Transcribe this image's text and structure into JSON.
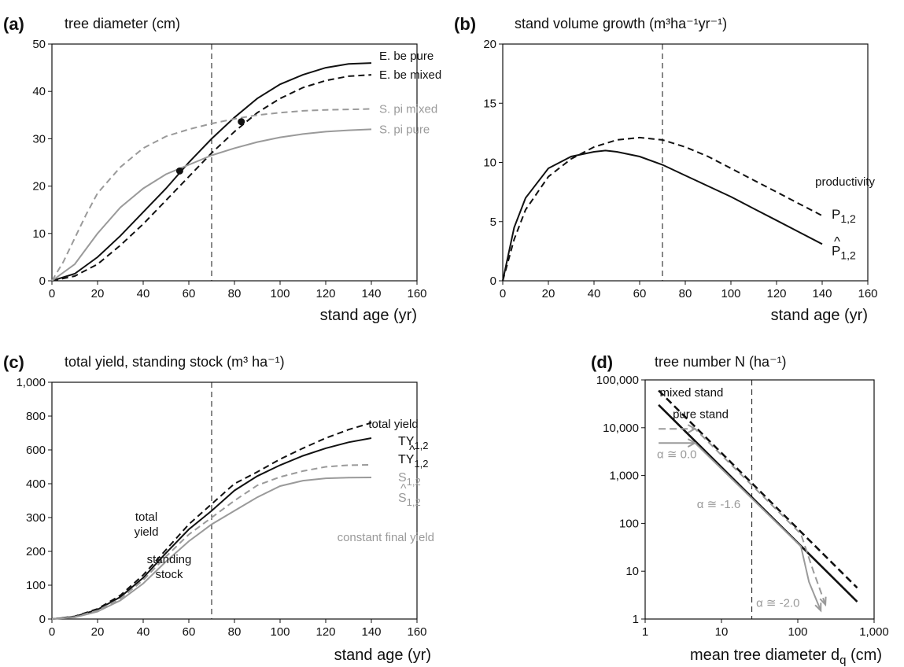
{
  "colors": {
    "black": "#111111",
    "gray": "#9a9a9a"
  },
  "chart_data": [
    {
      "panel_label": "(a)",
      "type": "line",
      "title": "tree diameter (cm)",
      "xlabel": "stand age (yr)",
      "xlim": [
        0,
        160
      ],
      "ylim": [
        0,
        50
      ],
      "x_ticks": [
        0,
        20,
        40,
        60,
        80,
        100,
        120,
        140,
        160
      ],
      "y_ticks": [
        0,
        10,
        20,
        30,
        40,
        50
      ],
      "reference_x": 70,
      "series": [
        {
          "name": "E. be pure",
          "color": "black",
          "dash": false,
          "x": [
            0,
            10,
            20,
            30,
            40,
            50,
            60,
            70,
            80,
            90,
            100,
            110,
            120,
            130,
            140
          ],
          "y": [
            0,
            1.5,
            5,
            9.5,
            14.5,
            19.5,
            25,
            30,
            34.5,
            38.5,
            41.5,
            43.5,
            45,
            45.8,
            46
          ]
        },
        {
          "name": "E. be mixed",
          "color": "black",
          "dash": true,
          "x": [
            0,
            10,
            20,
            30,
            40,
            50,
            60,
            70,
            80,
            90,
            100,
            110,
            120,
            130,
            140
          ],
          "y": [
            0,
            1,
            3.5,
            7.5,
            12,
            17,
            22,
            27,
            31.5,
            35.5,
            38.5,
            40.8,
            42.3,
            43.2,
            43.5
          ]
        },
        {
          "name": "S. pi mixed",
          "color": "gray",
          "dash": true,
          "x": [
            0,
            5,
            10,
            15,
            20,
            30,
            40,
            50,
            60,
            70,
            80,
            90,
            100,
            110,
            120,
            130,
            140
          ],
          "y": [
            0,
            4,
            9,
            14,
            18.5,
            24,
            28,
            30.5,
            32,
            33.2,
            34.2,
            35,
            35.5,
            35.9,
            36.1,
            36.2,
            36.3
          ]
        },
        {
          "name": "S. pi pure",
          "color": "gray",
          "dash": false,
          "x": [
            0,
            10,
            20,
            30,
            40,
            50,
            60,
            70,
            80,
            90,
            100,
            110,
            120,
            130,
            140
          ],
          "y": [
            0,
            3.5,
            10,
            15.5,
            19.5,
            22.5,
            24.5,
            26.5,
            28,
            29.3,
            30.3,
            31,
            31.5,
            31.8,
            32
          ]
        }
      ],
      "markers": [
        {
          "x": 56,
          "y": 23.2
        },
        {
          "x": 83,
          "y": 33.6
        }
      ]
    },
    {
      "panel_label": "(b)",
      "type": "line",
      "title": "stand volume growth (m³ha⁻¹yr⁻¹)",
      "xlabel": "stand age (yr)",
      "xlim": [
        0,
        160
      ],
      "ylim": [
        0,
        20
      ],
      "x_ticks": [
        0,
        20,
        40,
        60,
        80,
        100,
        120,
        140,
        160
      ],
      "y_ticks": [
        0,
        5,
        10,
        15,
        20
      ],
      "reference_x": 70,
      "annotation": "productivity",
      "series": [
        {
          "name": "P1,2",
          "label_main": "P",
          "label_sub": "1,2",
          "hat": false,
          "color": "black",
          "dash": true,
          "x": [
            0,
            5,
            10,
            20,
            30,
            40,
            50,
            60,
            70,
            80,
            90,
            100,
            110,
            120,
            130,
            140
          ],
          "y": [
            0,
            3.5,
            6,
            8.8,
            10.3,
            11.3,
            11.9,
            12.1,
            11.9,
            11.3,
            10.5,
            9.5,
            8.5,
            7.5,
            6.5,
            5.5
          ]
        },
        {
          "name": "P̂1,2",
          "label_main": "P",
          "label_sub": "1,2",
          "hat": true,
          "color": "black",
          "dash": false,
          "x": [
            0,
            5,
            10,
            20,
            30,
            40,
            45,
            50,
            60,
            70,
            80,
            90,
            100,
            110,
            120,
            130,
            140
          ],
          "y": [
            0,
            4.5,
            7,
            9.5,
            10.5,
            10.9,
            11,
            10.9,
            10.5,
            9.8,
            8.9,
            8,
            7.1,
            6.1,
            5.1,
            4.1,
            3.1
          ]
        }
      ]
    },
    {
      "panel_label": "(c)",
      "type": "line",
      "title": "total yield, standing stock (m³ ha⁻¹)",
      "xlabel": "stand age (yr)",
      "xlim": [
        0,
        160
      ],
      "ylim": [
        0,
        1000
      ],
      "x_ticks": [
        0,
        20,
        40,
        60,
        80,
        100,
        120,
        140,
        160
      ],
      "y_ticks": [
        0,
        100,
        200,
        300,
        400,
        600,
        800,
        1000
      ],
      "y_tick_labels": [
        "0",
        "100",
        "200",
        "300",
        "400",
        "600",
        "800",
        "1,000"
      ],
      "reference_x": 70,
      "annotations": {
        "total_yield_top": "total yield",
        "total_yield_left_1": "total",
        "total_yield_left_2": "yield",
        "standing_1": "standing",
        "standing_2": "stock",
        "constant": "constant final yield"
      },
      "series": [
        {
          "name": "TY1,2",
          "label_main": "TY",
          "label_sub": "1,2",
          "hat": false,
          "color": "black",
          "dash": true,
          "x": [
            0,
            10,
            20,
            30,
            40,
            50,
            60,
            70,
            80,
            90,
            100,
            110,
            120,
            130,
            140
          ],
          "y": [
            0,
            8,
            30,
            70,
            130,
            205,
            280,
            340,
            400,
            470,
            545,
            610,
            670,
            720,
            760
          ]
        },
        {
          "name": "TŶ1,2",
          "label_main": "TY",
          "label_sub": "1,2",
          "hat": true,
          "color": "black",
          "dash": false,
          "x": [
            0,
            10,
            20,
            30,
            40,
            50,
            60,
            70,
            80,
            90,
            100,
            110,
            120,
            130,
            140
          ],
          "y": [
            0,
            7,
            28,
            65,
            122,
            195,
            265,
            320,
            380,
            445,
            510,
            565,
            610,
            645,
            670
          ]
        },
        {
          "name": "S1,2",
          "label_main": "S",
          "label_sub": "1,2",
          "hat": false,
          "color": "gray",
          "dash": true,
          "x": [
            0,
            10,
            20,
            30,
            40,
            50,
            60,
            70,
            80,
            90,
            100,
            110,
            120,
            130,
            140
          ],
          "y": [
            0,
            6,
            25,
            60,
            115,
            185,
            250,
            300,
            350,
            395,
            440,
            475,
            500,
            510,
            512
          ]
        },
        {
          "name": "Ŝ1,2",
          "label_main": "S",
          "label_sub": "1,2",
          "hat": true,
          "color": "gray",
          "dash": false,
          "x": [
            0,
            10,
            20,
            30,
            40,
            50,
            60,
            70,
            80,
            90,
            100,
            110,
            120,
            130,
            140
          ],
          "y": [
            0,
            5,
            22,
            55,
            105,
            170,
            230,
            280,
            320,
            360,
            393,
            418,
            432,
            436,
            437
          ]
        }
      ]
    },
    {
      "panel_label": "(d)",
      "type": "line",
      "title": "tree number N (ha⁻¹)",
      "xlabel": "mean tree diameter dq (cm)",
      "xlabel_main": "mean tree diameter d",
      "xlabel_sub": "q",
      "xlabel_unit": " (cm)",
      "x_scale": "log",
      "y_scale": "log",
      "xlim": [
        1,
        1000
      ],
      "ylim": [
        1,
        100000
      ],
      "x_ticks": [
        1,
        10,
        100,
        1000
      ],
      "x_tick_labels": [
        "1",
        "10",
        "100",
        "1,000"
      ],
      "y_ticks": [
        1,
        10,
        100,
        1000,
        10000,
        100000
      ],
      "y_tick_labels": [
        "1",
        "10",
        "100",
        "1,000",
        "10,000",
        "100,000"
      ],
      "reference_x": 25,
      "series": [
        {
          "name": "mixed stand",
          "color": "black",
          "dash": true,
          "x": [
            1.5,
            600
          ],
          "y": [
            60000,
            4.5
          ]
        },
        {
          "name": "pure stand",
          "color": "black",
          "dash": false,
          "x": [
            1.5,
            600
          ],
          "y": [
            30000,
            2.3
          ]
        },
        {
          "name": "",
          "color": "gray",
          "dash": true,
          "x": [
            1.5,
            4.5,
            110,
            160,
            230
          ],
          "y": [
            9500,
            9500,
            60,
            10,
            2
          ]
        },
        {
          "name": "",
          "color": "gray",
          "dash": false,
          "x": [
            1.5,
            4.5,
            110,
            140,
            200
          ],
          "y": [
            4800,
            4800,
            33,
            6,
            1.5
          ]
        }
      ],
      "slopes": [
        {
          "text": "α ≅ 0.0",
          "x": 2.6,
          "y": 2300
        },
        {
          "text": "α ≅ -1.6",
          "x": 9.2,
          "y": 210
        },
        {
          "text": "α ≅ -2.0",
          "x": 55,
          "y": 1.8
        }
      ]
    }
  ]
}
